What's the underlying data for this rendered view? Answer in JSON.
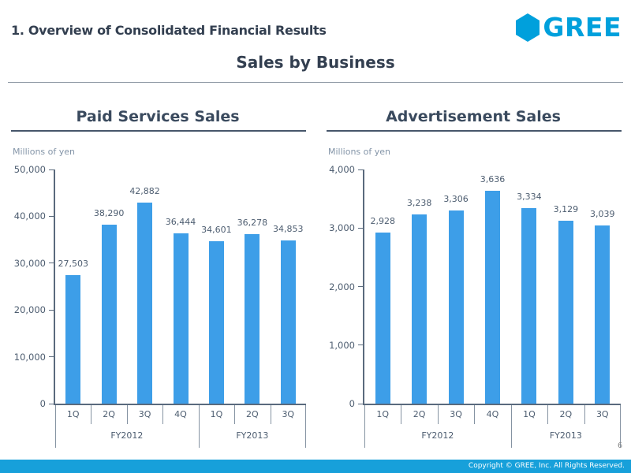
{
  "header": {
    "title": "1. Overview of Consolidated Financial Results",
    "subtitle": "Sales by Business",
    "logo_text": "GREE"
  },
  "footer": {
    "copyright": "Copyright © GREE, Inc. All Rights Reserved.",
    "page_number": "6"
  },
  "colors": {
    "bar_blue": "#3D9EE8",
    "logo_blue": "#00A0DC",
    "footer_blue": "#17A0DA",
    "heading_navy": "#333F50"
  },
  "chart_data": [
    {
      "type": "bar",
      "title": "Paid Services Sales",
      "units_label": "Millions of yen",
      "categories": [
        "1Q",
        "2Q",
        "3Q",
        "4Q",
        "1Q",
        "2Q",
        "3Q"
      ],
      "groups": [
        {
          "label": "FY2012",
          "span": 4
        },
        {
          "label": "FY2013",
          "span": 3
        }
      ],
      "values": [
        27503,
        38290,
        42882,
        36444,
        34601,
        36278,
        34853
      ],
      "value_labels": [
        "27,503",
        "38,290",
        "42,882",
        "36,444",
        "34,601",
        "36,278",
        "34,853"
      ],
      "ylim": [
        0,
        50000
      ],
      "ytick_labels": [
        "0",
        "10,000",
        "20,000",
        "30,000",
        "40,000",
        "50,000"
      ],
      "legend": "none",
      "grid": "off",
      "bar_color": "#3D9EE8"
    },
    {
      "type": "bar",
      "title": "Advertisement Sales",
      "units_label": "Millions of yen",
      "categories": [
        "1Q",
        "2Q",
        "3Q",
        "4Q",
        "1Q",
        "2Q",
        "3Q"
      ],
      "groups": [
        {
          "label": "FY2012",
          "span": 4
        },
        {
          "label": "FY2013",
          "span": 3
        }
      ],
      "values": [
        2928,
        3238,
        3306,
        3636,
        3334,
        3129,
        3039
      ],
      "value_labels": [
        "2,928",
        "3,238",
        "3,306",
        "3,636",
        "3,334",
        "3,129",
        "3,039"
      ],
      "ylim": [
        0,
        4000
      ],
      "ytick_labels": [
        "0",
        "1,000",
        "2,000",
        "3,000",
        "4,000"
      ],
      "legend": "none",
      "grid": "off",
      "bar_color": "#3D9EE8"
    }
  ]
}
